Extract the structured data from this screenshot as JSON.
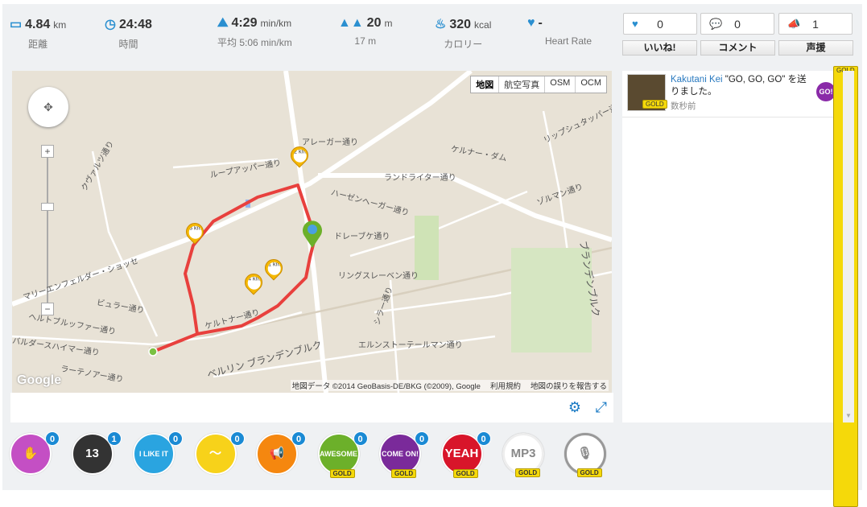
{
  "stats": [
    {
      "icon": "ruler-icon",
      "value": "4.84",
      "unit": "km",
      "label": "距離"
    },
    {
      "icon": "clock-icon",
      "value": "24:48",
      "unit": "",
      "label": "時間"
    },
    {
      "icon": "pace-icon",
      "value": "4:29",
      "unit": "min/km",
      "label": "平均 5:06 min/km"
    },
    {
      "icon": "mountain-icon",
      "value": "20",
      "unit": "m",
      "label": "17 m"
    },
    {
      "icon": "flame-icon",
      "value": "320",
      "unit": "kcal",
      "label": "カロリー"
    },
    {
      "icon": "heart-rate-icon",
      "value": "-",
      "unit": "",
      "label": "Heart Rate"
    }
  ],
  "social": {
    "like": {
      "count": "0",
      "label": "いいね!"
    },
    "comment": {
      "count": "0",
      "label": "コメント"
    },
    "cheer": {
      "count": "1",
      "label": "声援"
    }
  },
  "feed": {
    "gold": "GOLD",
    "user": "Kakutani Kei",
    "text": " \"GO, GO, GO\" を送りました。",
    "time": "数秒前",
    "avatar_badge": "GOLD",
    "stamp": "GO!"
  },
  "map": {
    "types": [
      "地図",
      "航空写真",
      "OSM",
      "OCM"
    ],
    "attribution": "地図データ ©2014 GeoBasis-DE/BKG (©2009), Google",
    "terms": "利用規約",
    "report": "地図の誤りを報告する",
    "logo": "Google",
    "km_markers": [
      "1 km",
      "2 km",
      "3 km",
      "4 km"
    ],
    "route_color": "#e8403d",
    "streets": [
      "アレーガー通り",
      "ループアッパー通り",
      "クヴァルツ通り",
      "ハーゼンヘーガー通り",
      "ランドライター通り",
      "ケルナー・ダム",
      "ゾルマン通り",
      "リップシュタッパー通り",
      "ドレーブケ通り",
      "リングスレーベン通り",
      "マリーエンフェルダー・ショッセ",
      "ビュラー通り",
      "ヘルトブルッファー通り",
      "バルダースハイマー通り",
      "ラーテノアー通り",
      "ベルリン ブランデンブルク",
      "エルンストーテールマン通り",
      "シラー通り",
      "ブランデンブルク",
      "ケルトナー通り"
    ]
  },
  "stamps": [
    {
      "name": "clap",
      "color": "#c44fc4",
      "text": "✋",
      "count": "0",
      "gold": ""
    },
    {
      "name": "13",
      "color": "#333333",
      "text": "13",
      "count": "1",
      "gold": ""
    },
    {
      "name": "i-like-it",
      "color": "#2aa4e0",
      "text": "I LIKE IT",
      "count": "0",
      "gold": ""
    },
    {
      "name": "wave",
      "color": "#f7d21a",
      "text": "〜",
      "count": "0",
      "gold": ""
    },
    {
      "name": "megaphone",
      "color": "#f5870f",
      "text": "📢",
      "count": "0",
      "gold": ""
    },
    {
      "name": "awesome",
      "color": "#6cb02a",
      "text": "AWESOME",
      "count": "0",
      "gold": "GOLD"
    },
    {
      "name": "come-on",
      "color": "#7a2a9a",
      "text": "COME ON!",
      "count": "0",
      "gold": "GOLD"
    },
    {
      "name": "yeah",
      "color": "#d8152a",
      "text": "YEAH",
      "count": "0",
      "gold": "GOLD"
    },
    {
      "name": "mp3",
      "color": "#ffffff",
      "text": "MP3",
      "count": "",
      "gold": "GOLD"
    },
    {
      "name": "mic",
      "color": "#ffffff",
      "text": "🎙",
      "count": "",
      "gold": "GOLD"
    }
  ]
}
